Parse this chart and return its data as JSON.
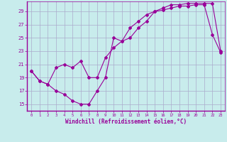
{
  "xlabel": "Windchill (Refroidissement éolien,°C)",
  "bg_color": "#c8ecec",
  "line_color": "#990099",
  "grid_color": "#aaaacc",
  "xlim": [
    -0.5,
    23.5
  ],
  "ylim": [
    14.0,
    30.5
  ],
  "yticks": [
    15,
    17,
    19,
    21,
    23,
    25,
    27,
    29
  ],
  "xticks": [
    0,
    1,
    2,
    3,
    4,
    5,
    6,
    7,
    8,
    9,
    10,
    11,
    12,
    13,
    14,
    15,
    16,
    17,
    18,
    19,
    20,
    21,
    22,
    23
  ],
  "line1_x": [
    0,
    1,
    2,
    3,
    4,
    5,
    6,
    7,
    8,
    9,
    10,
    11,
    12,
    13,
    14,
    15,
    16,
    17,
    18,
    19,
    20,
    21,
    22,
    23
  ],
  "line1_y": [
    20.0,
    18.5,
    18.0,
    17.0,
    16.5,
    15.5,
    15.0,
    15.0,
    17.0,
    19.0,
    25.0,
    24.5,
    25.0,
    26.5,
    27.5,
    29.0,
    29.2,
    29.5,
    29.8,
    29.8,
    30.0,
    30.0,
    25.5,
    22.8
  ],
  "line2_x": [
    0,
    1,
    2,
    3,
    4,
    5,
    6,
    7,
    8,
    9,
    10,
    11,
    12,
    13,
    14,
    15,
    16,
    17,
    18,
    19,
    20,
    21,
    22,
    23
  ],
  "line2_y": [
    20.0,
    18.5,
    18.0,
    20.5,
    21.0,
    20.5,
    21.5,
    19.0,
    19.0,
    22.0,
    23.5,
    24.5,
    26.5,
    27.5,
    28.5,
    29.0,
    29.5,
    30.0,
    30.0,
    30.2,
    30.2,
    30.2,
    30.2,
    23.0
  ]
}
